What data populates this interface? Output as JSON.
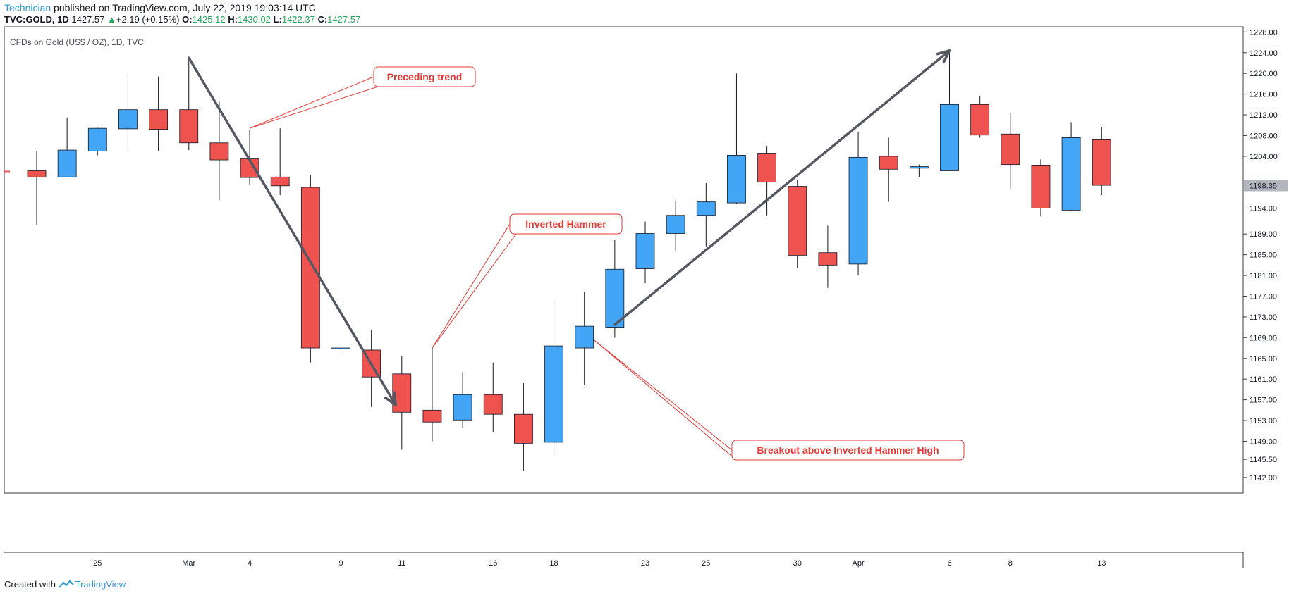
{
  "header": {
    "author": "Technician",
    "published": "published on TradingView.com, July 22, 2019 19:03:14 UTC",
    "symbol": "TVC:GOLD, 1D",
    "last": "1427.57",
    "change": "+2.19 (+0.15%)",
    "o_label": "O:",
    "o": "1425.12",
    "h_label": "H:",
    "h": "1430.02",
    "l_label": "L:",
    "l": "1422.37",
    "c_label": "C:",
    "c": "1427.57"
  },
  "footer": {
    "created": "Created with",
    "brand": "TradingView"
  },
  "colors": {
    "up": "#42a5f5",
    "down": "#ef5350",
    "annotation": "#e53935",
    "arrow": "#555863",
    "price_tag_bg": "#b2b5be"
  },
  "chart_data": {
    "type": "candlestick",
    "title": "CFDs on Gold (US$ / OZ), 1D, TVC",
    "ylim": [
      1139.0,
      1229.0
    ],
    "y_ticks": [
      "1228.00",
      "1224.00",
      "1220.00",
      "1216.00",
      "1212.00",
      "1208.00",
      "1204.00",
      "1194.00",
      "1189.00",
      "1185.00",
      "1181.00",
      "1177.00",
      "1173.00",
      "1169.00",
      "1165.00",
      "1161.00",
      "1157.00",
      "1153.00",
      "1149.00",
      "1145.50",
      "1142.00"
    ],
    "x_ticks": [
      "25",
      "Mar",
      "4",
      "9",
      "11",
      "16",
      "18",
      "23",
      "25",
      "30",
      "Apr",
      "6",
      "8",
      "13"
    ],
    "x_tick_index": [
      2,
      5,
      7,
      10,
      12,
      15,
      17,
      20,
      22,
      25,
      27,
      30,
      32,
      35
    ],
    "last_price_tag": "1198.35",
    "candles": [
      {
        "o": 1201.2,
        "h": 1205.0,
        "l": 1190.7,
        "c": 1200.0
      },
      {
        "o": 1200.0,
        "h": 1211.5,
        "l": 1200.0,
        "c": 1205.2
      },
      {
        "o": 1205.0,
        "h": 1209.5,
        "l": 1204.2,
        "c": 1209.4
      },
      {
        "o": 1209.3,
        "h": 1220.0,
        "l": 1205.0,
        "c": 1213.0
      },
      {
        "o": 1213.0,
        "h": 1219.4,
        "l": 1205.0,
        "c": 1209.2
      },
      {
        "o": 1213.0,
        "h": 1223.0,
        "l": 1205.2,
        "c": 1206.6
      },
      {
        "o": 1206.6,
        "h": 1214.5,
        "l": 1195.5,
        "c": 1203.3
      },
      {
        "o": 1203.5,
        "h": 1209.0,
        "l": 1198.5,
        "c": 1199.9
      },
      {
        "o": 1200.0,
        "h": 1209.4,
        "l": 1196.5,
        "c": 1198.3
      },
      {
        "o": 1198.0,
        "h": 1200.4,
        "l": 1164.2,
        "c": 1167.0
      },
      {
        "o": 1167.0,
        "h": 1175.6,
        "l": 1166.3,
        "c": 1167.0
      },
      {
        "o": 1166.6,
        "h": 1170.5,
        "l": 1155.6,
        "c": 1161.4
      },
      {
        "o": 1162.0,
        "h": 1165.5,
        "l": 1147.4,
        "c": 1154.6
      },
      {
        "o": 1155.0,
        "h": 1167.0,
        "l": 1149.0,
        "c": 1152.7
      },
      {
        "o": 1153.1,
        "h": 1162.3,
        "l": 1151.6,
        "c": 1158.0
      },
      {
        "o": 1158.0,
        "h": 1164.2,
        "l": 1150.8,
        "c": 1154.2
      },
      {
        "o": 1154.2,
        "h": 1160.2,
        "l": 1143.2,
        "c": 1148.6
      },
      {
        "o": 1148.8,
        "h": 1176.2,
        "l": 1146.2,
        "c": 1167.4
      },
      {
        "o": 1167.0,
        "h": 1177.8,
        "l": 1159.8,
        "c": 1171.2
      },
      {
        "o": 1171.0,
        "h": 1187.8,
        "l": 1169.0,
        "c": 1182.2
      },
      {
        "o": 1182.3,
        "h": 1191.4,
        "l": 1179.5,
        "c": 1189.1
      },
      {
        "o": 1189.1,
        "h": 1195.3,
        "l": 1185.8,
        "c": 1192.6
      },
      {
        "o": 1192.6,
        "h": 1198.8,
        "l": 1186.6,
        "c": 1195.2
      },
      {
        "o": 1195.0,
        "h": 1220.0,
        "l": 1194.8,
        "c": 1204.2
      },
      {
        "o": 1204.6,
        "h": 1206.0,
        "l": 1192.6,
        "c": 1199.0
      },
      {
        "o": 1198.2,
        "h": 1199.5,
        "l": 1182.4,
        "c": 1184.9
      },
      {
        "o": 1185.4,
        "h": 1190.6,
        "l": 1178.6,
        "c": 1183.0
      },
      {
        "o": 1183.2,
        "h": 1208.6,
        "l": 1181.0,
        "c": 1203.8
      },
      {
        "o": 1204.0,
        "h": 1207.6,
        "l": 1195.2,
        "c": 1201.5
      },
      {
        "o": 1201.7,
        "h": 1202.4,
        "l": 1200.0,
        "c": 1202.0
      },
      {
        "o": 1201.2,
        "h": 1224.4,
        "l": 1201.2,
        "c": 1214.0
      },
      {
        "o": 1214.0,
        "h": 1215.7,
        "l": 1207.6,
        "c": 1208.1
      },
      {
        "o": 1208.3,
        "h": 1212.3,
        "l": 1197.6,
        "c": 1202.4
      },
      {
        "o": 1202.3,
        "h": 1203.4,
        "l": 1192.4,
        "c": 1194.0
      },
      {
        "o": 1193.6,
        "h": 1210.6,
        "l": 1193.4,
        "c": 1207.6
      },
      {
        "o": 1207.2,
        "h": 1209.6,
        "l": 1196.5,
        "c": 1198.4
      }
    ],
    "annotations": [
      {
        "text": "Preceding trend"
      },
      {
        "text": "Inverted Hammer"
      },
      {
        "text": "Breakout above Inverted Hammer High"
      }
    ]
  }
}
